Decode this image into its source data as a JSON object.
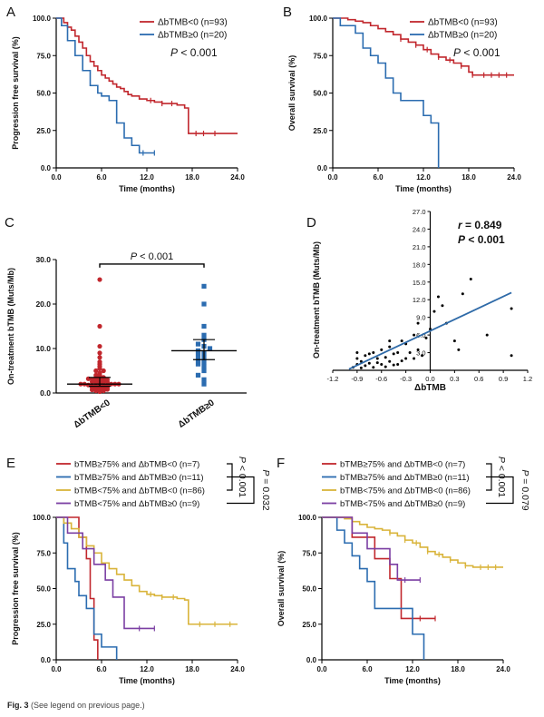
{
  "caption": {
    "label": "Fig. 3",
    "text": "(See legend on previous page.)"
  },
  "colors": {
    "red": "#c1272d",
    "blue": "#2b6cb0",
    "gold": "#d9b43a",
    "purple": "#7b3fa3",
    "black": "#000000",
    "regression": "#2e6aa8"
  },
  "chart_data": [
    {
      "id": "A",
      "type": "line",
      "panel_label": "A",
      "ylabel": "Progression free survival (%)",
      "xlabel": "Time (months)",
      "xlim": [
        0,
        24
      ],
      "ylim": [
        0,
        100
      ],
      "x_ticks": [
        "0.0",
        "6.0",
        "12.0",
        "18.0",
        "24.0"
      ],
      "y_ticks": [
        "0.0",
        "25.0",
        "50.0",
        "75.0",
        "100.0"
      ],
      "legend": [
        "ΔbTMB<0 (n=93)",
        "ΔbTMB≥0 (n=20)"
      ],
      "annotation": {
        "p": "P",
        "text": " < 0.001"
      },
      "series": [
        {
          "name": "ΔbTMB<0 (n=93)",
          "color": "red",
          "x": [
            0,
            1.0,
            1.5,
            2.0,
            2.5,
            3.0,
            3.5,
            4.0,
            4.5,
            5.0,
            5.5,
            6.0,
            6.5,
            7.0,
            7.5,
            8.0,
            8.5,
            9.0,
            9.5,
            10.0,
            11.0,
            12.0,
            13.0,
            14.0,
            15.0,
            16.0,
            17.0,
            17.5,
            18.5,
            19.5,
            21.0,
            24.0
          ],
          "y": [
            100,
            97,
            94,
            92,
            88,
            84,
            80,
            75,
            71,
            68,
            65,
            62,
            60,
            58,
            56,
            54,
            53,
            51,
            49,
            48,
            46,
            45,
            44,
            43,
            43,
            42,
            40,
            23,
            23,
            23,
            23,
            23
          ],
          "censor_x": [
            12.5,
            14.0,
            15.3,
            18.5,
            19.5,
            21.0
          ]
        },
        {
          "name": "ΔbTMB≥0 (n=20)",
          "color": "blue",
          "x": [
            0,
            0.7,
            1.5,
            2.5,
            3.5,
            4.5,
            5.5,
            6.0,
            7.0,
            8.0,
            9.0,
            10.0,
            11.0,
            13.0
          ],
          "y": [
            100,
            95,
            85,
            75,
            65,
            55,
            50,
            48,
            45,
            30,
            20,
            15,
            10,
            10
          ],
          "censor_x": [
            11.5,
            13.0
          ]
        }
      ]
    },
    {
      "id": "B",
      "type": "line",
      "panel_label": "B",
      "ylabel": "Overall survival (%)",
      "xlabel": "Time (months)",
      "xlim": [
        0,
        24
      ],
      "ylim": [
        0,
        100
      ],
      "x_ticks": [
        "0.0",
        "6.0",
        "12.0",
        "18.0",
        "24.0"
      ],
      "y_ticks": [
        "0.0",
        "25.0",
        "50.0",
        "75.0",
        "100.0"
      ],
      "legend": [
        "ΔbTMB<0 (n=93)",
        "ΔbTMB≥0 (n=20)"
      ],
      "annotation": {
        "p": "P",
        "text": " < 0.001"
      },
      "series": [
        {
          "name": "ΔbTMB<0 (n=93)",
          "color": "red",
          "x": [
            0,
            2,
            3,
            4,
            5,
            6,
            7,
            8,
            9,
            10,
            11,
            12,
            13,
            14,
            15,
            16,
            17,
            18,
            18.5,
            19,
            24
          ],
          "y": [
            100,
            99,
            98,
            97,
            95,
            93,
            91,
            89,
            86,
            84,
            82,
            79,
            76,
            74,
            72,
            70,
            68,
            64,
            62,
            62,
            62
          ],
          "censor_x": [
            9,
            11,
            12.5,
            14,
            15.5,
            17,
            18.5,
            20,
            21,
            22,
            23
          ]
        },
        {
          "name": "ΔbTMB≥0 (n=20)",
          "color": "blue",
          "x": [
            0,
            1,
            2,
            3,
            4,
            5,
            6,
            7,
            8,
            9,
            11,
            12,
            13,
            14
          ],
          "y": [
            100,
            95,
            95,
            90,
            80,
            75,
            70,
            60,
            50,
            45,
            45,
            35,
            30,
            0
          ],
          "censor_x": []
        }
      ]
    },
    {
      "id": "C",
      "type": "scatter",
      "panel_label": "C",
      "ylabel": "On-treatment bTMB (Muts/Mb)",
      "categories": [
        "ΔbTMB<0",
        "ΔbTMB≥0"
      ],
      "ylim": [
        0,
        30
      ],
      "y_ticks": [
        "0.0",
        "10.0",
        "20.0",
        "30.0"
      ],
      "annotation": {
        "p": "P",
        "text": " < 0.001"
      },
      "groups": [
        {
          "name": "ΔbTMB<0",
          "color": "red",
          "marker": "circle",
          "median": 2.0,
          "ci": [
            1.5,
            3.5
          ],
          "values": [
            0.3,
            0.5,
            0.5,
            0.7,
            0.8,
            1.0,
            1.0,
            1.0,
            1.2,
            1.2,
            1.5,
            1.5,
            1.5,
            1.5,
            1.8,
            1.8,
            2.0,
            2.0,
            2.0,
            2.0,
            2.0,
            2.2,
            2.5,
            2.5,
            2.5,
            2.5,
            2.8,
            3.0,
            3.0,
            3.0,
            3.0,
            3.2,
            3.5,
            3.5,
            3.5,
            4.0,
            4.0,
            4.5,
            5.0,
            5.0,
            5.5,
            6.0,
            6.5,
            7.0,
            8.0,
            9.0,
            10.5,
            15.0,
            25.5
          ]
        },
        {
          "name": "ΔbTMB≥0",
          "color": "blue",
          "marker": "square",
          "median": 9.5,
          "ci": [
            7.5,
            12.0
          ],
          "values": [
            2.0,
            3.0,
            4.0,
            5.0,
            6.0,
            6.5,
            7.0,
            7.5,
            8.0,
            8.5,
            9.0,
            9.5,
            10.0,
            10.5,
            11.0,
            12.0,
            13.0,
            15.0,
            20.0,
            24.0
          ]
        }
      ]
    },
    {
      "id": "D",
      "type": "scatter",
      "panel_label": "D",
      "xlabel": "ΔbTMB",
      "ylabel": "On-treatment bTMB (Muts/Mb)",
      "xlim": [
        -1.2,
        1.2
      ],
      "ylim": [
        0,
        27
      ],
      "x_ticks": [
        "-1.2",
        "-0.9",
        "-0.6",
        "-0.3",
        "0.0",
        "0.3",
        "0.6",
        "0.9",
        "1.2"
      ],
      "y_ticks": [
        "3.0",
        "6.0",
        "9.0",
        "12.0",
        "15.0",
        "18.0",
        "21.0",
        "24.0",
        "27.0"
      ],
      "annotation": {
        "r_label": "r",
        "r_text": " = 0.849",
        "p": "P",
        "p_text": " < 0.001"
      },
      "regression": {
        "x": [
          -1.0,
          1.0
        ],
        "y": [
          0.2,
          13.2
        ]
      },
      "points": [
        [
          -0.95,
          0.5
        ],
        [
          -0.9,
          1.0
        ],
        [
          -0.9,
          2.0
        ],
        [
          -0.85,
          1.5
        ],
        [
          -0.8,
          0.8
        ],
        [
          -0.8,
          2.5
        ],
        [
          -0.75,
          1.2
        ],
        [
          -0.7,
          3.0
        ],
        [
          -0.7,
          0.5
        ],
        [
          -0.65,
          2.0
        ],
        [
          -0.6,
          1.0
        ],
        [
          -0.6,
          3.5
        ],
        [
          -0.55,
          2.2
        ],
        [
          -0.5,
          1.5
        ],
        [
          -0.5,
          4.0
        ],
        [
          -0.45,
          2.8
        ],
        [
          -0.4,
          3.0
        ],
        [
          -0.4,
          1.0
        ],
        [
          -0.35,
          5.0
        ],
        [
          -0.3,
          2.0
        ],
        [
          -0.3,
          4.5
        ],
        [
          -0.25,
          3.0
        ],
        [
          -0.2,
          6.0
        ],
        [
          -0.15,
          3.5
        ],
        [
          -0.1,
          2.5
        ],
        [
          -0.05,
          5.5
        ],
        [
          -0.9,
          3.0
        ],
        [
          -0.75,
          2.8
        ],
        [
          -0.55,
          0.6
        ],
        [
          -0.85,
          0.4
        ],
        [
          -0.65,
          1.3
        ],
        [
          -0.45,
          0.9
        ],
        [
          -0.35,
          1.6
        ],
        [
          -0.2,
          2.0
        ],
        [
          -0.5,
          5.0
        ],
        [
          0.0,
          7.0
        ],
        [
          0.05,
          10.0
        ],
        [
          0.1,
          12.5
        ],
        [
          0.15,
          11.0
        ],
        [
          0.3,
          5.0
        ],
        [
          0.4,
          13.0
        ],
        [
          0.5,
          15.5
        ],
        [
          0.7,
          6.0
        ],
        [
          1.0,
          10.5
        ],
        [
          1.0,
          2.5
        ],
        [
          0.2,
          8.0
        ],
        [
          0.35,
          3.5
        ],
        [
          -0.15,
          8.0
        ]
      ]
    },
    {
      "id": "E",
      "type": "line",
      "panel_label": "E",
      "ylabel": "Progression free survival (%)",
      "xlabel": "Time (months)",
      "xlim": [
        0,
        24
      ],
      "ylim": [
        0,
        100
      ],
      "x_ticks": [
        "0.0",
        "6.0",
        "12.0",
        "18.0",
        "24.0"
      ],
      "y_ticks": [
        "0.0",
        "25.0",
        "50.0",
        "75.0",
        "100.0"
      ],
      "legend": [
        "bTMB≥75% and ΔbTMB<0 (n=7)",
        "bTMB≥75% and ΔbTMB≥0 (n=11)",
        "bTMB<75% and ΔbTMB<0 (n=86)",
        "bTMB<75% and ΔbTMB≥0 (n=9)"
      ],
      "brackets": [
        {
          "p": "P",
          "text": " < 0.001"
        },
        {
          "p": "P",
          "text": " = 0.032"
        }
      ],
      "series": [
        {
          "name": "bTMB≥75% and ΔbTMB<0 (n=7)",
          "color": "red",
          "x": [
            0,
            3.0,
            4.0,
            4.5,
            5.0,
            5.5
          ],
          "y": [
            100,
            86,
            71,
            43,
            14,
            0
          ],
          "censor_x": []
        },
        {
          "name": "bTMB≥75% and ΔbTMB≥0 (n=11)",
          "color": "blue",
          "x": [
            0,
            1.0,
            1.5,
            2.5,
            3.0,
            4.0,
            5.0,
            6.0,
            8.0
          ],
          "y": [
            100,
            82,
            64,
            55,
            45,
            36,
            18,
            9,
            0
          ],
          "censor_x": []
        },
        {
          "name": "bTMB<75% and ΔbTMB<0 (n=86)",
          "color": "gold",
          "x": [
            0,
            1,
            2,
            3,
            4,
            5,
            6,
            7,
            8,
            9,
            10,
            11,
            12,
            13,
            14,
            15,
            16,
            17,
            17.5,
            24
          ],
          "y": [
            100,
            96,
            92,
            86,
            80,
            75,
            68,
            64,
            60,
            56,
            52,
            48,
            46,
            45,
            44,
            44,
            43,
            42,
            25,
            25
          ],
          "censor_x": [
            12.5,
            14,
            15.5,
            19,
            21,
            23
          ]
        },
        {
          "name": "bTMB<75% and ΔbTMB≥0 (n=9)",
          "color": "purple",
          "x": [
            0,
            1.5,
            3.5,
            5.0,
            6.5,
            7.5,
            9.0,
            13.0
          ],
          "y": [
            100,
            89,
            78,
            67,
            56,
            44,
            22,
            22
          ],
          "censor_x": [
            11,
            13
          ]
        }
      ]
    },
    {
      "id": "F",
      "type": "line",
      "panel_label": "F",
      "ylabel": "Overall survival (%)",
      "xlabel": "Time (months)",
      "xlim": [
        0,
        24
      ],
      "ylim": [
        0,
        100
      ],
      "x_ticks": [
        "0.0",
        "6.0",
        "12.0",
        "18.0",
        "24.0"
      ],
      "y_ticks": [
        "0.0",
        "25.0",
        "50.0",
        "75.0",
        "100.0"
      ],
      "legend": [
        "bTMB≥75% and ΔbTMB<0 (n=7)",
        "bTMB≥75% and ΔbTMB≥0 (n=11)",
        "bTMB<75% and ΔbTMB<0 (n=86)",
        "bTMB<75% and ΔbTMB≥0 (n=9)"
      ],
      "brackets": [
        {
          "p": "P",
          "text": " < 0.001"
        },
        {
          "p": "P",
          "text": " = 0.079"
        }
      ],
      "series": [
        {
          "name": "bTMB≥75% and ΔbTMB<0 (n=7)",
          "color": "red",
          "x": [
            0,
            4.0,
            7.0,
            9.0,
            10.5,
            15.0
          ],
          "y": [
            100,
            86,
            71,
            57,
            29,
            29
          ],
          "censor_x": [
            13,
            15
          ]
        },
        {
          "name": "bTMB≥75% and ΔbTMB≥0 (n=11)",
          "color": "blue",
          "x": [
            0,
            2.0,
            3.0,
            4.0,
            5.0,
            6.0,
            7.0,
            9.0,
            12.0,
            13.5
          ],
          "y": [
            100,
            91,
            82,
            73,
            64,
            55,
            36,
            36,
            18,
            0
          ],
          "censor_x": []
        },
        {
          "name": "bTMB<75% and ΔbTMB<0 (n=86)",
          "color": "gold",
          "x": [
            0,
            3,
            4,
            5,
            6,
            7,
            8,
            9,
            10,
            11,
            12,
            13,
            14,
            15,
            16,
            17,
            18,
            19,
            20,
            24
          ],
          "y": [
            100,
            99,
            97,
            95,
            93,
            92,
            91,
            89,
            87,
            84,
            82,
            79,
            76,
            74,
            72,
            70,
            68,
            66,
            65,
            65
          ],
          "censor_x": [
            9,
            11,
            12.5,
            14,
            15.5,
            17,
            19,
            21,
            22,
            23
          ]
        },
        {
          "name": "bTMB<75% and ΔbTMB≥0 (n=9)",
          "color": "purple",
          "x": [
            0,
            4.0,
            6.0,
            9.0,
            10.0,
            13.0
          ],
          "y": [
            100,
            89,
            78,
            67,
            56,
            56
          ],
          "censor_x": [
            11,
            13
          ]
        }
      ]
    }
  ]
}
